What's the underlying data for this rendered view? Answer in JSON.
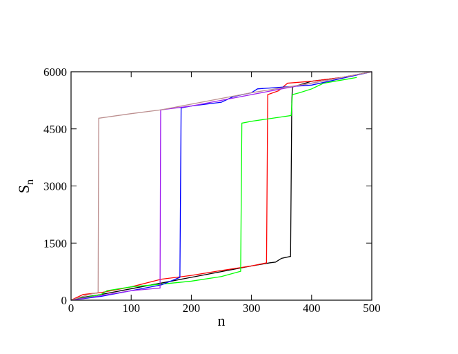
{
  "chart_data": {
    "type": "line",
    "xlabel": "n",
    "ylabel": "S",
    "ylabel_sub": "n",
    "xlim": [
      0,
      500
    ],
    "ylim": [
      0,
      6000
    ],
    "xticks": [
      0,
      100,
      200,
      300,
      400,
      500
    ],
    "yticks": [
      0,
      1500,
      3000,
      4500,
      6000
    ],
    "series": [
      {
        "color": "#000000",
        "x": [
          0,
          10,
          50,
          100,
          150,
          200,
          250,
          300,
          330,
          340,
          350,
          365,
          367,
          368,
          400,
          450,
          500
        ],
        "values": [
          0,
          50,
          150,
          300,
          450,
          600,
          750,
          900,
          980,
          1000,
          1100,
          1150,
          5200,
          5600,
          5750,
          5850,
          6000
        ]
      },
      {
        "color": "#ff0000",
        "x": [
          0,
          20,
          50,
          100,
          150,
          200,
          250,
          300,
          325,
          327,
          345,
          360,
          400,
          450,
          500
        ],
        "values": [
          0,
          150,
          200,
          350,
          550,
          650,
          780,
          900,
          980,
          5400,
          5500,
          5700,
          5750,
          5850,
          6000
        ]
      },
      {
        "color": "#00ff00",
        "x": [
          0,
          50,
          60,
          100,
          150,
          200,
          250,
          282,
          284,
          300,
          366,
          368,
          380,
          400,
          420,
          475
        ],
        "values": [
          0,
          150,
          250,
          350,
          420,
          500,
          620,
          760,
          4650,
          4700,
          4850,
          5400,
          5450,
          5550,
          5700,
          5850
        ]
      },
      {
        "color": "#0000ff",
        "x": [
          0,
          50,
          100,
          150,
          181,
          183,
          200,
          250,
          270,
          300,
          310,
          400,
          500
        ],
        "values": [
          0,
          100,
          250,
          400,
          600,
          5050,
          5100,
          5200,
          5350,
          5450,
          5550,
          5650,
          6000
        ]
      },
      {
        "color": "#a020f0",
        "x": [
          0,
          50,
          100,
          148,
          149,
          200,
          250,
          300,
          350,
          400,
          500
        ],
        "values": [
          0,
          120,
          250,
          320,
          5000,
          5100,
          5250,
          5400,
          5550,
          5700,
          6000
        ]
      },
      {
        "color": "#bc8f8f",
        "x": [
          0,
          30,
          45,
          46,
          100,
          150,
          200,
          250,
          300,
          400,
          500
        ],
        "values": [
          0,
          150,
          200,
          4780,
          4900,
          5000,
          5150,
          5300,
          5450,
          5700,
          6000
        ]
      }
    ]
  }
}
